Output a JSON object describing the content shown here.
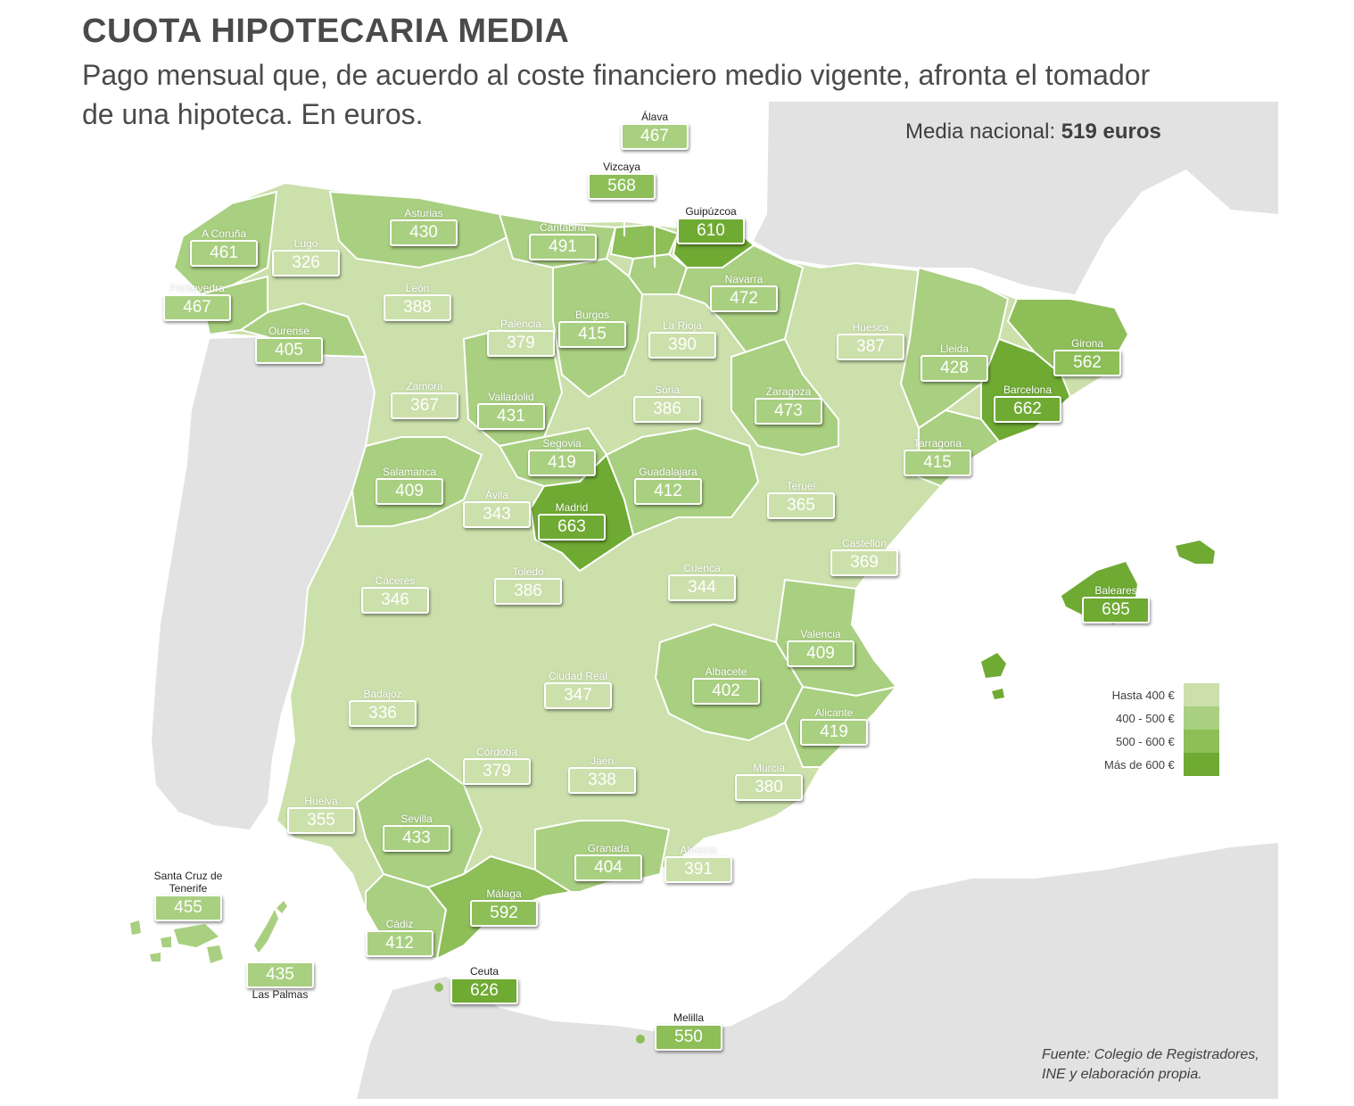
{
  "title": "CUOTA HIPOTECARIA MEDIA",
  "subtitle": "Pago mensual que, de acuerdo al coste financiero medio vigente, afronta el tomador de una hipoteca. En euros.",
  "national_label": "Media nacional:",
  "national_value": "519 euros",
  "source": "Fuente: Colegio de Registradores, INE y elaboración propia.",
  "colors": {
    "c1": "#cbe0ab",
    "c2": "#a9cf80",
    "c3": "#8dbe58",
    "c4": "#6faa33",
    "border": "#ffffff",
    "land": "#d6d6d6",
    "sea": "#ffffff"
  },
  "legend": [
    {
      "label": "Hasta 400 €",
      "color": "#cbe0ab"
    },
    {
      "label": "400 - 500 €",
      "color": "#a9cf80"
    },
    {
      "label": "500 - 600 €",
      "color": "#8dbe58"
    },
    {
      "label": "Más de 600 €",
      "color": "#6faa33"
    }
  ],
  "provinces": [
    {
      "name": "Álava",
      "value": "467"
    },
    {
      "name": "Vizcaya",
      "value": "568"
    },
    {
      "name": "Guipúzcoa",
      "value": "610"
    },
    {
      "name": "Asturias",
      "value": "430"
    },
    {
      "name": "Cantabria",
      "value": "491"
    },
    {
      "name": "A Coruña",
      "value": "461"
    },
    {
      "name": "Lugo",
      "value": "326"
    },
    {
      "name": "Pontevedra",
      "value": "467"
    },
    {
      "name": "León",
      "value": "388"
    },
    {
      "name": "Navarra",
      "value": "472"
    },
    {
      "name": "Palencia",
      "value": "379"
    },
    {
      "name": "Burgos",
      "value": "415"
    },
    {
      "name": "La Rioja",
      "value": "390"
    },
    {
      "name": "Huesca",
      "value": "387"
    },
    {
      "name": "Ourense",
      "value": "405"
    },
    {
      "name": "Lleida",
      "value": "428"
    },
    {
      "name": "Girona",
      "value": "562"
    },
    {
      "name": "Barcelona",
      "value": "662"
    },
    {
      "name": "Zamora",
      "value": "367"
    },
    {
      "name": "Valladolid",
      "value": "431"
    },
    {
      "name": "Soria",
      "value": "386"
    },
    {
      "name": "Zaragoza",
      "value": "473"
    },
    {
      "name": "Segovia",
      "value": "419"
    },
    {
      "name": "Tarragona",
      "value": "415"
    },
    {
      "name": "Salamanca",
      "value": "409"
    },
    {
      "name": "Guadalajara",
      "value": "412"
    },
    {
      "name": "Ávila",
      "value": "343"
    },
    {
      "name": "Madrid",
      "value": "663"
    },
    {
      "name": "Teruel",
      "value": "365"
    },
    {
      "name": "Castellón",
      "value": "369"
    },
    {
      "name": "Toledo",
      "value": "386"
    },
    {
      "name": "Cuenca",
      "value": "344"
    },
    {
      "name": "Cáceres",
      "value": "346"
    },
    {
      "name": "Baleares",
      "value": "695"
    },
    {
      "name": "Valencia",
      "value": "409"
    },
    {
      "name": "Ciudad Real",
      "value": "347"
    },
    {
      "name": "Albacete",
      "value": "402"
    },
    {
      "name": "Badajoz",
      "value": "336"
    },
    {
      "name": "Alicante",
      "value": "419"
    },
    {
      "name": "Córdoba",
      "value": "379"
    },
    {
      "name": "Jaén",
      "value": "338"
    },
    {
      "name": "Murcia",
      "value": "380"
    },
    {
      "name": "Huelva",
      "value": "355"
    },
    {
      "name": "Sevilla",
      "value": "433"
    },
    {
      "name": "Granada",
      "value": "404"
    },
    {
      "name": "Almería",
      "value": "391"
    },
    {
      "name": "Santa Cruz de Tenerife",
      "value": "455"
    },
    {
      "name": "Málaga",
      "value": "592"
    },
    {
      "name": "Cádiz",
      "value": "412"
    },
    {
      "name": "Las Palmas",
      "value": "435"
    },
    {
      "name": "Ceuta",
      "value": "626"
    },
    {
      "name": "Melilla",
      "value": "550"
    }
  ]
}
